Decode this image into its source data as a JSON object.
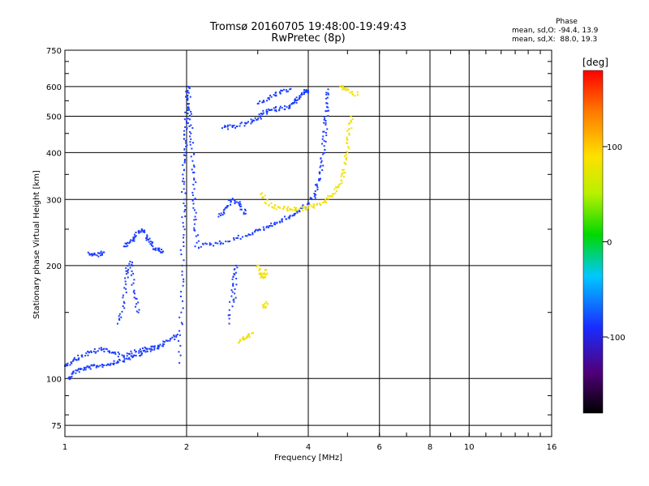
{
  "header": {
    "title": "Tromsø 20160705 19:48:00-19:49:43",
    "subtitle": "RwPretec (8p)"
  },
  "phase_stats": {
    "heading": "Phase",
    "line_o": "mean, sd,O: -94.4, 13.9",
    "line_x": "mean, sd,X:  88.0, 19.3"
  },
  "colorbar": {
    "unit": "[deg]",
    "ticks": [
      "100",
      "0",
      "-100"
    ],
    "tick_values": [
      100,
      0,
      -100
    ],
    "range": [
      -180,
      180
    ]
  },
  "chart_data": {
    "type": "scatter",
    "xlabel": "Frequency [MHz]",
    "ylabel": "Stationary phase Virtual Height [km]",
    "x_scale": "log",
    "y_scale": "log",
    "xlim": [
      1,
      16
    ],
    "ylim": [
      70,
      750
    ],
    "x_ticks": [
      1,
      2,
      4,
      6,
      8,
      10,
      16
    ],
    "x_tick_labels": [
      "1",
      "2",
      "4",
      "6",
      "8",
      "10",
      "16"
    ],
    "y_ticks": [
      75,
      100,
      200,
      300,
      400,
      500,
      600,
      750
    ],
    "y_tick_labels": [
      "75",
      "100",
      "200",
      "300",
      "400",
      "500",
      "600",
      "750"
    ],
    "grid": true,
    "series": [
      {
        "mode": "O",
        "phase_mean": -94.4,
        "color": "#1a3cff",
        "traces": [
          {
            "points": [
              [
                1.02,
                100
              ],
              [
                1.05,
                104
              ],
              [
                1.1,
                106
              ],
              [
                1.15,
                107
              ],
              [
                1.2,
                108
              ],
              [
                1.28,
                109
              ],
              [
                1.35,
                111
              ],
              [
                1.42,
                113
              ],
              [
                1.5,
                115
              ],
              [
                1.6,
                118
              ],
              [
                1.7,
                122
              ],
              [
                1.8,
                126
              ],
              [
                1.9,
                131
              ]
            ]
          },
          {
            "points": [
              [
                1.0,
                108
              ],
              [
                1.05,
                112
              ],
              [
                1.1,
                115
              ],
              [
                1.18,
                118
              ],
              [
                1.25,
                120
              ],
              [
                1.32,
                117
              ],
              [
                1.4,
                115
              ],
              [
                1.5,
                118
              ],
              [
                1.6,
                120
              ],
              [
                1.75,
                122
              ]
            ]
          },
          {
            "points": [
              [
                1.15,
                215
              ],
              [
                1.2,
                213
              ],
              [
                1.25,
                217
              ]
            ]
          },
          {
            "points": [
              [
                1.4,
                225
              ],
              [
                1.45,
                232
              ],
              [
                1.5,
                240
              ],
              [
                1.55,
                250
              ],
              [
                1.6,
                235
              ],
              [
                1.65,
                225
              ],
              [
                1.7,
                220
              ],
              [
                1.75,
                218
              ]
            ]
          },
          {
            "points": [
              [
                1.35,
                140
              ],
              [
                1.4,
                160
              ],
              [
                1.42,
                190
              ],
              [
                1.45,
                205
              ],
              [
                1.48,
                170
              ],
              [
                1.52,
                150
              ]
            ]
          },
          {
            "points": [
              [
                1.92,
                110
              ],
              [
                1.94,
                150
              ],
              [
                1.95,
                200
              ],
              [
                1.96,
                260
              ],
              [
                1.97,
                320
              ],
              [
                1.98,
                380
              ],
              [
                1.99,
                430
              ],
              [
                2.0,
                480
              ],
              [
                2.01,
                540
              ],
              [
                2.02,
                600
              ],
              [
                2.03,
                520
              ],
              [
                2.05,
                450
              ],
              [
                2.07,
                380
              ],
              [
                2.09,
                320
              ],
              [
                2.1,
                270
              ],
              [
                2.12,
                230
              ]
            ]
          },
          {
            "points": [
              [
                2.1,
                225
              ],
              [
                2.3,
                228
              ],
              [
                2.5,
                232
              ],
              [
                2.8,
                240
              ],
              [
                3.0,
                248
              ],
              [
                3.2,
                255
              ],
              [
                3.4,
                262
              ],
              [
                3.6,
                270
              ],
              [
                3.8,
                280
              ],
              [
                4.0,
                292
              ],
              [
                4.15,
                310
              ],
              [
                4.25,
                340
              ],
              [
                4.32,
                380
              ],
              [
                4.38,
                430
              ],
              [
                4.42,
                480
              ],
              [
                4.45,
                530
              ],
              [
                4.48,
                590
              ]
            ]
          },
          {
            "points": [
              [
                2.45,
                465
              ],
              [
                2.6,
                470
              ],
              [
                2.8,
                478
              ],
              [
                3.0,
                490
              ],
              [
                3.1,
                510
              ],
              [
                3.25,
                520
              ],
              [
                3.4,
                525
              ],
              [
                3.6,
                530
              ],
              [
                3.7,
                545
              ],
              [
                3.8,
                560
              ],
              [
                3.9,
                580
              ],
              [
                4.0,
                585
              ]
            ]
          },
          {
            "points": [
              [
                3.0,
                540
              ],
              [
                3.2,
                560
              ],
              [
                3.4,
                580
              ],
              [
                3.6,
                590
              ]
            ]
          },
          {
            "points": [
              [
                2.4,
                270
              ],
              [
                2.5,
                285
              ],
              [
                2.6,
                300
              ],
              [
                2.7,
                290
              ],
              [
                2.8,
                275
              ]
            ]
          },
          {
            "points": [
              [
                2.55,
                140
              ],
              [
                2.6,
                170
              ],
              [
                2.65,
                200
              ],
              [
                2.62,
                160
              ]
            ]
          }
        ]
      },
      {
        "mode": "X",
        "phase_mean": 88.0,
        "color": "#f0e000",
        "traces": [
          {
            "points": [
              [
                3.05,
                310
              ],
              [
                3.2,
                290
              ],
              [
                3.4,
                285
              ],
              [
                3.6,
                283
              ],
              [
                3.8,
                283
              ],
              [
                4.0,
                285
              ],
              [
                4.2,
                290
              ],
              [
                4.4,
                298
              ],
              [
                4.6,
                310
              ],
              [
                4.8,
                330
              ],
              [
                4.9,
                360
              ],
              [
                5.0,
                400
              ],
              [
                5.05,
                450
              ],
              [
                5.1,
                500
              ]
            ]
          },
          {
            "points": [
              [
                3.0,
                200
              ],
              [
                3.05,
                190
              ],
              [
                3.1,
                185
              ],
              [
                3.15,
                195
              ]
            ]
          },
          {
            "points": [
              [
                3.1,
                155
              ],
              [
                3.15,
                160
              ]
            ]
          },
          {
            "points": [
              [
                2.7,
                125
              ],
              [
                2.8,
                128
              ],
              [
                2.9,
                132
              ]
            ]
          },
          {
            "points": [
              [
                4.8,
                600
              ],
              [
                5.0,
                590
              ],
              [
                5.3,
                570
              ]
            ]
          }
        ]
      }
    ]
  }
}
